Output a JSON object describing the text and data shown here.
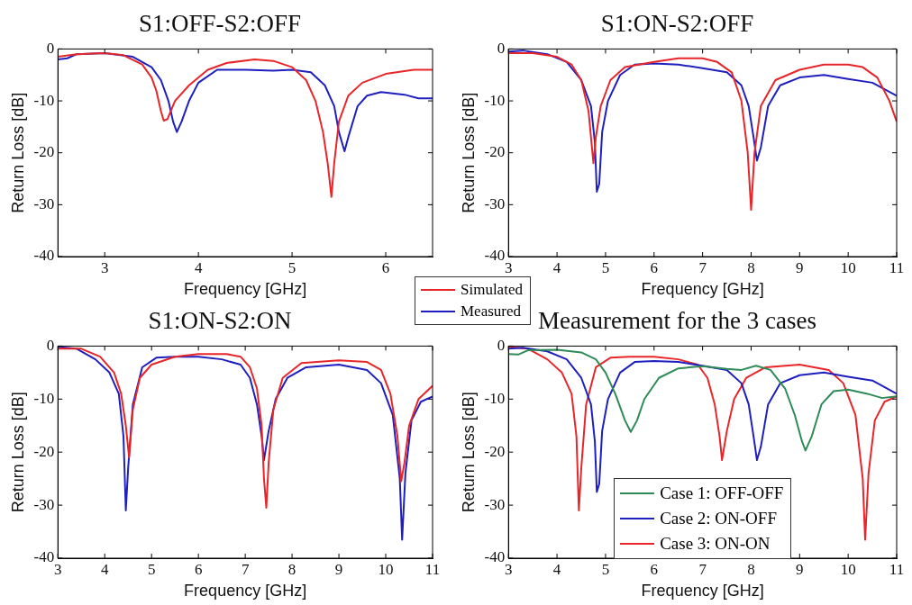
{
  "chart_data": [
    {
      "type": "line",
      "title": "S1:OFF-S2:OFF",
      "xlabel": "Frequency [GHz]",
      "ylabel": "Return Loss [dB]",
      "xlim": [
        2.5,
        6.5
      ],
      "xticks": [
        3,
        4,
        5,
        6
      ],
      "ylim": [
        -40,
        0
      ],
      "yticks": [
        -40,
        -30,
        -20,
        -10,
        0
      ],
      "grid": false,
      "legend": "bottom right",
      "marker": "none",
      "line_style": "solid",
      "series": [
        {
          "name": "Simulated",
          "color": "#e8262a",
          "x": [
            2.5,
            2.7,
            3.0,
            3.2,
            3.4,
            3.5,
            3.55,
            3.6,
            3.63,
            3.67,
            3.75,
            3.9,
            4.1,
            4.3,
            4.6,
            4.8,
            5.0,
            5.15,
            5.25,
            5.33,
            5.38,
            5.42,
            5.45,
            5.5,
            5.6,
            5.75,
            6.0,
            6.3,
            6.5
          ],
          "values": [
            -1.5,
            -1,
            -0.8,
            -1.2,
            -3,
            -5.5,
            -8,
            -12,
            -13.8,
            -13.5,
            -10,
            -7,
            -4,
            -2.7,
            -2,
            -2.3,
            -3.5,
            -6,
            -10,
            -16,
            -22,
            -28.5,
            -22,
            -14,
            -9,
            -6.5,
            -4.8,
            -4,
            -4
          ]
        },
        {
          "name": "Measured",
          "color": "#1f1fbf",
          "x": [
            2.5,
            2.6,
            2.7,
            3.0,
            3.3,
            3.5,
            3.6,
            3.68,
            3.73,
            3.77,
            3.82,
            3.9,
            4.0,
            4.2,
            4.5,
            4.8,
            5.0,
            5.2,
            5.35,
            5.45,
            5.5,
            5.56,
            5.6,
            5.7,
            5.8,
            5.95,
            6.2,
            6.35,
            6.5
          ],
          "values": [
            -2,
            -1.8,
            -1,
            -0.8,
            -1.5,
            -3.5,
            -6,
            -10,
            -14,
            -16,
            -14,
            -10,
            -6.5,
            -4,
            -4,
            -4.2,
            -4,
            -4.5,
            -7,
            -11,
            -16,
            -19.7,
            -17,
            -11,
            -9,
            -8.3,
            -8.8,
            -9.5,
            -9.5
          ]
        }
      ]
    },
    {
      "type": "line",
      "title": "S1:ON-S2:OFF",
      "xlabel": "Frequency [GHz]",
      "ylabel": "Return Loss [dB]",
      "xlim": [
        3,
        11
      ],
      "xticks": [
        3,
        4,
        5,
        6,
        7,
        8,
        9,
        10,
        11
      ],
      "ylim": [
        -40,
        0
      ],
      "yticks": [
        -40,
        -30,
        -20,
        -10,
        0
      ],
      "grid": false,
      "marker": "none",
      "line_style": "solid",
      "series": [
        {
          "color": "#e8262a",
          "x": [
            3,
            3.5,
            4.0,
            4.3,
            4.5,
            4.65,
            4.75,
            4.8,
            4.9,
            5.1,
            5.4,
            6.0,
            6.5,
            7.0,
            7.3,
            7.6,
            7.8,
            7.93,
            8.0,
            8.07,
            8.2,
            8.5,
            9.0,
            9.5,
            10.0,
            10.3,
            10.6,
            10.85,
            11
          ],
          "values": [
            -0.8,
            -0.8,
            -1.5,
            -3,
            -6,
            -12,
            -22,
            -17,
            -11,
            -6,
            -3.5,
            -2.5,
            -1.8,
            -1.8,
            -2.5,
            -4.5,
            -10,
            -20,
            -31,
            -20,
            -11,
            -6,
            -4,
            -3,
            -3,
            -3.5,
            -5.5,
            -10,
            -14
          ]
        },
        {
          "color": "#1f1fbf",
          "x": [
            3,
            3.3,
            3.8,
            4.2,
            4.5,
            4.7,
            4.78,
            4.82,
            4.87,
            4.93,
            5.05,
            5.3,
            5.6,
            6.0,
            6.5,
            7.0,
            7.5,
            7.8,
            7.95,
            8.05,
            8.12,
            8.2,
            8.35,
            8.6,
            9.0,
            9.5,
            10.0,
            10.5,
            11
          ],
          "values": [
            -0.5,
            -0.3,
            -1,
            -2.5,
            -6,
            -11,
            -18,
            -27.5,
            -26,
            -16,
            -10,
            -5,
            -3,
            -2.8,
            -3,
            -3.7,
            -4.5,
            -7,
            -11,
            -17,
            -21.5,
            -19,
            -11,
            -7,
            -5.5,
            -5,
            -5.8,
            -6.5,
            -9
          ]
        }
      ]
    },
    {
      "type": "line",
      "title": "S1:ON-S2:ON",
      "xlabel": "Frequency [GHz]",
      "ylabel": "Return Loss [dB]",
      "xlim": [
        3,
        11
      ],
      "xticks": [
        3,
        4,
        5,
        6,
        7,
        8,
        9,
        10,
        11
      ],
      "ylim": [
        -40,
        0
      ],
      "yticks": [
        -40,
        -30,
        -20,
        -10,
        0
      ],
      "grid": false,
      "marker": "none",
      "line_style": "solid",
      "series": [
        {
          "color": "#e8262a",
          "x": [
            3,
            3.5,
            3.9,
            4.2,
            4.35,
            4.45,
            4.52,
            4.6,
            4.75,
            5.0,
            5.5,
            6.0,
            6.6,
            6.9,
            7.1,
            7.25,
            7.35,
            7.4,
            7.45,
            7.5,
            7.6,
            7.8,
            8.2,
            9.0,
            9.6,
            9.9,
            10.1,
            10.25,
            10.33,
            10.4,
            10.5,
            10.7,
            11
          ],
          "values": [
            -0.5,
            -0.5,
            -2,
            -5,
            -9,
            -15,
            -21,
            -12,
            -6,
            -3.5,
            -2,
            -1.5,
            -1.5,
            -2,
            -4,
            -8,
            -15,
            -25,
            -30.5,
            -22,
            -12,
            -6,
            -3.2,
            -2.7,
            -3,
            -4.5,
            -9,
            -17,
            -25.5,
            -22,
            -15,
            -10,
            -7.5
          ]
        },
        {
          "color": "#1f1fbf",
          "x": [
            3,
            3.4,
            3.8,
            4.1,
            4.3,
            4.4,
            4.45,
            4.5,
            4.6,
            4.8,
            5.1,
            5.5,
            6.0,
            6.5,
            6.9,
            7.1,
            7.25,
            7.35,
            7.4,
            7.5,
            7.65,
            7.9,
            8.3,
            9.0,
            9.6,
            9.9,
            10.15,
            10.3,
            10.35,
            10.42,
            10.55,
            10.75,
            11
          ],
          "values": [
            -0.2,
            -0.5,
            -2.5,
            -5,
            -9,
            -17,
            -31,
            -23,
            -11,
            -4,
            -2.2,
            -2,
            -2,
            -2.5,
            -3.5,
            -6,
            -11,
            -17,
            -21.5,
            -16,
            -10,
            -6,
            -4,
            -3.5,
            -4.5,
            -7,
            -13,
            -25,
            -36.5,
            -24,
            -14,
            -10.5,
            -9.5
          ]
        }
      ]
    },
    {
      "type": "line",
      "title": "Measurement for the 3 cases",
      "xlabel": "Frequency [GHz]",
      "ylabel": "Return Loss [dB]",
      "xlim": [
        3,
        11
      ],
      "xticks": [
        3,
        4,
        5,
        6,
        7,
        8,
        9,
        10,
        11
      ],
      "ylim": [
        -40,
        0
      ],
      "yticks": [
        -40,
        -30,
        -20,
        -10,
        0
      ],
      "grid": false,
      "legend": "bottom",
      "marker": "none",
      "line_style": "solid",
      "series": [
        {
          "name": "Case 1: OFF-OFF",
          "color": "#2e8b57",
          "x": [
            3,
            3.2,
            3.4,
            4.0,
            4.5,
            4.8,
            5.0,
            5.2,
            5.4,
            5.52,
            5.65,
            5.8,
            6.1,
            6.5,
            7.0,
            7.5,
            7.8,
            8.1,
            8.4,
            8.7,
            8.9,
            9.05,
            9.12,
            9.25,
            9.45,
            9.7,
            10.0,
            10.4,
            10.7,
            11
          ],
          "values": [
            -1.5,
            -1.6,
            -0.8,
            -0.7,
            -1.2,
            -2.5,
            -5,
            -9,
            -14,
            -16.2,
            -14,
            -10,
            -6,
            -4.2,
            -3.8,
            -4.3,
            -4.5,
            -3.7,
            -4.5,
            -8,
            -13,
            -18,
            -19.7,
            -17,
            -11,
            -8.5,
            -8.2,
            -9,
            -9.8,
            -9.5
          ]
        },
        {
          "name": "Case 2: ON-OFF",
          "color": "#1f1fbf",
          "x": [
            3,
            3.3,
            3.8,
            4.2,
            4.5,
            4.7,
            4.78,
            4.82,
            4.87,
            4.93,
            5.05,
            5.3,
            5.6,
            6.0,
            6.5,
            7.0,
            7.5,
            7.8,
            7.95,
            8.05,
            8.12,
            8.2,
            8.35,
            8.6,
            9.0,
            9.5,
            10.0,
            10.5,
            11
          ],
          "values": [
            -0.5,
            -0.3,
            -1,
            -2.5,
            -6,
            -11,
            -18,
            -27.5,
            -26,
            -16,
            -10,
            -5,
            -3,
            -2.8,
            -3,
            -3.7,
            -4.5,
            -7,
            -11,
            -17,
            -21.5,
            -19,
            -11,
            -7,
            -5.5,
            -5,
            -5.8,
            -6.5,
            -9
          ]
        },
        {
          "name": "Case 3: ON-ON",
          "color": "#e8262a",
          "x": [
            3,
            3.4,
            3.8,
            4.1,
            4.3,
            4.4,
            4.45,
            4.5,
            4.6,
            4.8,
            5.1,
            5.5,
            6.0,
            6.5,
            6.9,
            7.1,
            7.25,
            7.35,
            7.4,
            7.5,
            7.65,
            7.9,
            8.3,
            9.0,
            9.6,
            9.9,
            10.15,
            10.3,
            10.35,
            10.42,
            10.55,
            10.75,
            11
          ],
          "values": [
            -0.2,
            -0.5,
            -2.5,
            -5,
            -9,
            -17,
            -31,
            -23,
            -11,
            -4,
            -2.2,
            -2,
            -2,
            -2.5,
            -3.5,
            -6,
            -11,
            -17,
            -21.5,
            -16,
            -10,
            -6,
            -4,
            -3.5,
            -4.5,
            -7,
            -13,
            -25,
            -36.5,
            -24,
            -14,
            -10.5,
            -9.5
          ]
        }
      ]
    }
  ]
}
